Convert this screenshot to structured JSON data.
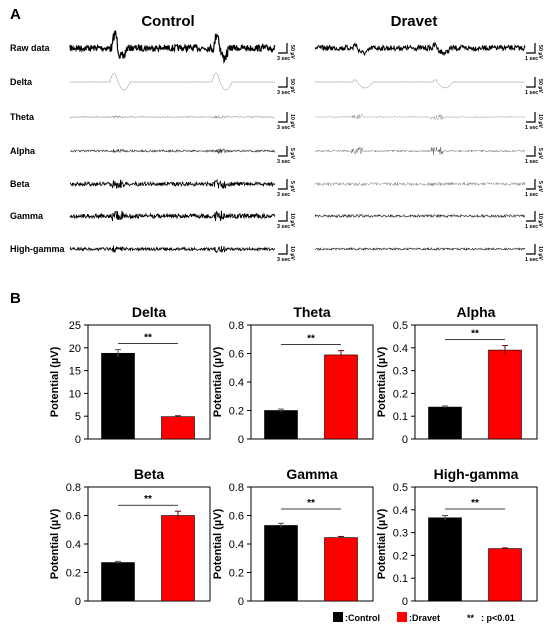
{
  "panel_a": {
    "letter": "A",
    "groups": [
      {
        "title": "Control",
        "bands": [
          {
            "label": "Raw data",
            "scale_value": "50 µV",
            "scale_time": "3 sec"
          },
          {
            "label": "Delta",
            "scale_value": "50 µV",
            "scale_time": "3 sec"
          },
          {
            "label": "Theta",
            "scale_value": "10 µV",
            "scale_time": "3 sec"
          },
          {
            "label": "Alpha",
            "scale_value": "5 µV",
            "scale_time": "3 sec"
          },
          {
            "label": "Beta",
            "scale_value": "5 µV",
            "scale_time": "3 sec"
          },
          {
            "label": "Gamma",
            "scale_value": "10 µV",
            "scale_time": "3 sec"
          },
          {
            "label": "High-gamma",
            "scale_value": "10 µV",
            "scale_time": "3 sec"
          }
        ]
      },
      {
        "title": "Dravet",
        "bands": [
          {
            "scale_value": "50 µV",
            "scale_time": "1 sec"
          },
          {
            "scale_value": "50 µV",
            "scale_time": "1 sec"
          },
          {
            "scale_value": "10 µV",
            "scale_time": "1 sec"
          },
          {
            "scale_value": "5 µV",
            "scale_time": "1 sec"
          },
          {
            "scale_value": "5 µV",
            "scale_time": "1 sec"
          },
          {
            "scale_value": "10 µV",
            "scale_time": "1 sec"
          },
          {
            "scale_value": "10 µV",
            "scale_time": "1 sec"
          }
        ]
      }
    ]
  },
  "panel_b": {
    "letter": "B",
    "legend": {
      "control_label": ":Control",
      "dravet_label": ":Dravet",
      "sig_marker": "**",
      "sig_text": ": p<0.01",
      "control_color": "#000000",
      "dravet_color": "#ff0000"
    }
  },
  "chart_data": [
    {
      "type": "bar",
      "title": "Delta",
      "ylabel": "Potential (µV)",
      "categories": [
        "Control",
        "Dravet"
      ],
      "values": [
        18.8,
        4.9
      ],
      "errors": [
        0.8,
        0.2
      ],
      "ylim": [
        0,
        25
      ],
      "yticks": [
        "0",
        "5",
        "10",
        "15",
        "20",
        "25"
      ],
      "significance": "**"
    },
    {
      "type": "bar",
      "title": "Theta",
      "ylabel": "Potential (µV)",
      "categories": [
        "Control",
        "Dravet"
      ],
      "values": [
        0.2,
        0.59
      ],
      "errors": [
        0.01,
        0.03
      ],
      "ylim": [
        0,
        0.8
      ],
      "yticks": [
        "0",
        "0.2",
        "0.4",
        "0.6",
        "0.8"
      ],
      "significance": "**"
    },
    {
      "type": "bar",
      "title": "Alpha",
      "ylabel": "Potential (µV)",
      "categories": [
        "Control",
        "Dravet"
      ],
      "values": [
        0.14,
        0.39
      ],
      "errors": [
        0.005,
        0.02
      ],
      "ylim": [
        0,
        0.5
      ],
      "yticks": [
        "0",
        "0.1",
        "0.2",
        "0.3",
        "0.4",
        "0.5"
      ],
      "significance": "**"
    },
    {
      "type": "bar",
      "title": "Beta",
      "ylabel": "Potential (µV)",
      "categories": [
        "Control",
        "Dravet"
      ],
      "values": [
        0.27,
        0.6
      ],
      "errors": [
        0.008,
        0.03
      ],
      "ylim": [
        0,
        0.8
      ],
      "yticks": [
        "0",
        "0.2",
        "0.4",
        "0.6",
        "0.8"
      ],
      "significance": "**"
    },
    {
      "type": "bar",
      "title": "Gamma",
      "ylabel": "Potential (µV)",
      "categories": [
        "Control",
        "Dravet"
      ],
      "values": [
        0.53,
        0.445
      ],
      "errors": [
        0.015,
        0.008
      ],
      "ylim": [
        0,
        0.8
      ],
      "yticks": [
        "0",
        "0.2",
        "0.4",
        "0.6",
        "0.8"
      ],
      "significance": "**"
    },
    {
      "type": "bar",
      "title": "High-gamma",
      "ylabel": "Potential (µV)",
      "categories": [
        "Control",
        "Dravet"
      ],
      "values": [
        0.365,
        0.23
      ],
      "errors": [
        0.01,
        0.003
      ],
      "ylim": [
        0,
        0.5
      ],
      "yticks": [
        "0",
        "0.1",
        "0.2",
        "0.3",
        "0.4",
        "0.5"
      ],
      "significance": "**"
    }
  ]
}
